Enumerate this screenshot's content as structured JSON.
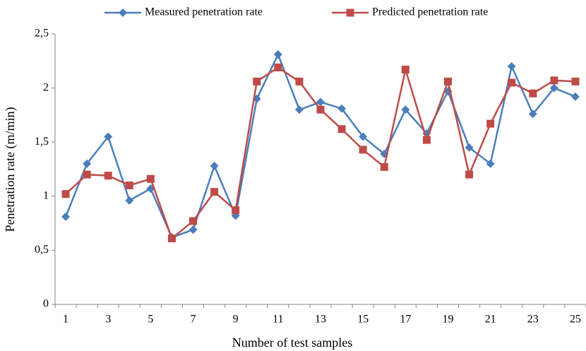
{
  "chart_data": {
    "type": "line",
    "x_label": "Number of test samples",
    "y_label": "Penetration rate (m/min)",
    "categories": [
      "1",
      null,
      "3",
      null,
      "5",
      null,
      "7",
      null,
      "9",
      null,
      "11",
      null,
      "13",
      null,
      "15",
      null,
      "17",
      null,
      "19",
      null,
      "21",
      null,
      "23",
      null,
      "25"
    ],
    "series": [
      {
        "name": "Measured penetration rate",
        "color": "#4a7ebb",
        "marker": "diamond",
        "values": [
          0.81,
          1.3,
          1.55,
          0.96,
          1.07,
          0.62,
          0.69,
          1.28,
          0.82,
          1.9,
          2.31,
          1.8,
          1.87,
          1.81,
          1.55,
          1.39,
          1.8,
          1.58,
          1.97,
          1.45,
          1.3,
          2.2,
          1.76,
          2.0,
          1.92
        ]
      },
      {
        "name": "Predicted penetration rate",
        "color": "#be4b48",
        "marker": "square",
        "values": [
          1.02,
          1.2,
          1.19,
          1.1,
          1.16,
          0.61,
          0.77,
          1.04,
          0.87,
          2.06,
          2.19,
          2.06,
          1.8,
          1.62,
          1.43,
          1.27,
          2.17,
          1.52,
          2.06,
          1.2,
          1.67,
          2.05,
          1.95,
          2.07,
          2.06
        ]
      }
    ],
    "ylim": [
      0,
      2.5
    ],
    "yticks": [
      0,
      {
        "value": 0.5,
        "label": "0,5"
      },
      1,
      {
        "value": 1.5,
        "label": "1,5"
      },
      2,
      {
        "value": 2.5,
        "label": "2,5"
      }
    ],
    "grid": false,
    "legend": "top"
  }
}
